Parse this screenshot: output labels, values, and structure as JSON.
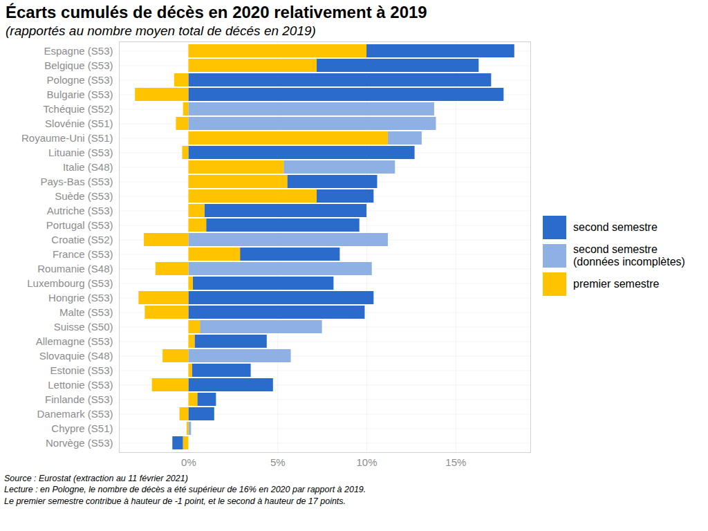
{
  "chart_data": {
    "type": "bar",
    "orientation": "horizontal",
    "stacked": true,
    "grid": true,
    "legend": "right",
    "title": "Écarts cumulés de décès en 2020 relativement à 2019",
    "subtitle": "(rapportés au nombre moyen total de décés en 2019)",
    "caption": [
      "Source : Eurostat (extraction au 11 février 2021)",
      "Lecture : en Pologne, le nombre de décès a été supérieur de 16% en 2020 par rapport à 2019.",
      "Le premier semestre contribue à hauteur de -1 point, et le second à hauteur de 17 points."
    ],
    "categories": [
      "Espagne (S53)",
      "Belgique (S53)",
      "Pologne (S53)",
      "Bulgarie (S53)",
      "Tchéquie (S52)",
      "Slovénie (S51)",
      "Royaume-Uni (S51)",
      "Lituanie (S53)",
      "Italie (S48)",
      "Pays-Bas (S53)",
      "Suède (S53)",
      "Autriche (S53)",
      "Portugal (S53)",
      "Croatie (S52)",
      "France (S53)",
      "Roumanie (S48)",
      "Luxembourg (S53)",
      "Hongrie (S53)",
      "Malte (S53)",
      "Suisse (S50)",
      "Allemagne (S53)",
      "Slovaquie (S48)",
      "Estonie (S53)",
      "Lettonie (S53)",
      "Finlande (S53)",
      "Danemark (S53)",
      "Chypre (S51)",
      "Norvège (S53)"
    ],
    "series": [
      {
        "name": "second semestre",
        "color": "#2b6bcc",
        "values": [
          8.3,
          9.1,
          17.0,
          17.7,
          null,
          null,
          null,
          12.7,
          null,
          5.05,
          3.2,
          9.1,
          8.6,
          null,
          5.6,
          null,
          7.9,
          10.4,
          9.9,
          null,
          4.05,
          null,
          3.3,
          4.75,
          1.05,
          1.45,
          null,
          -0.6
        ]
      },
      {
        "name": "second semestre\n(données incomplètes)",
        "color": "#8fb0e2",
        "values": [
          null,
          null,
          null,
          null,
          13.8,
          13.9,
          1.9,
          null,
          6.25,
          null,
          null,
          null,
          null,
          11.2,
          null,
          10.3,
          null,
          null,
          null,
          6.85,
          null,
          5.75,
          null,
          null,
          null,
          null,
          0.15,
          null
        ]
      },
      {
        "name": "premier semestre",
        "color": "#ffc300",
        "values": [
          10.0,
          7.2,
          -0.8,
          -3.0,
          -0.3,
          -0.7,
          11.2,
          -0.35,
          5.35,
          5.55,
          7.2,
          0.9,
          1.0,
          -2.5,
          2.9,
          -1.85,
          0.25,
          -2.8,
          -2.45,
          0.65,
          0.35,
          -1.45,
          0.2,
          -2.05,
          0.5,
          -0.5,
          -0.1,
          -0.3
        ]
      }
    ],
    "xlim": [
      -3.9,
      19.2
    ],
    "xticks": [
      {
        "value": 0,
        "label": "0%"
      },
      {
        "value": 5,
        "label": "5%"
      },
      {
        "value": 10,
        "label": "10%"
      },
      {
        "value": 15,
        "label": "15%"
      }
    ]
  }
}
